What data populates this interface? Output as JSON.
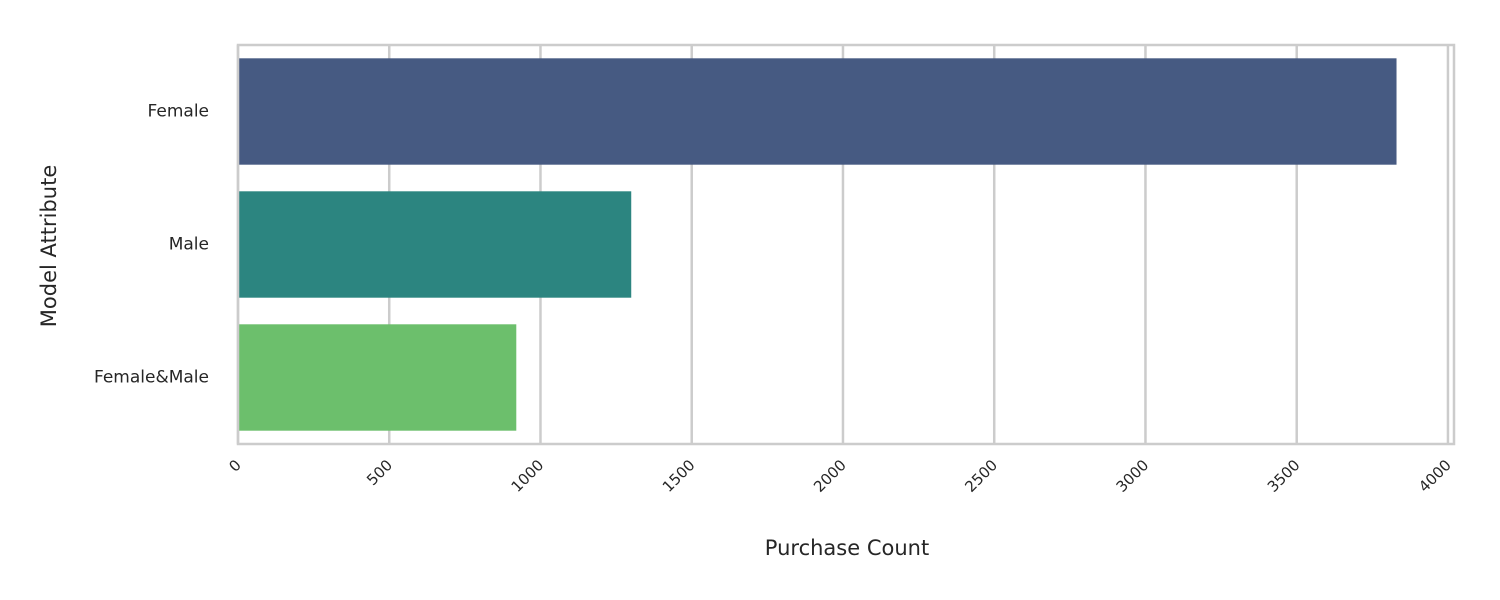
{
  "chart_data": {
    "type": "bar",
    "orientation": "horizontal",
    "categories": [
      "Female",
      "Male",
      "Female&Male"
    ],
    "values": [
      3830,
      1300,
      920
    ],
    "colors": [
      "#465a82",
      "#2c8580",
      "#6cbf6c"
    ],
    "title": "",
    "xlabel": "Purchase Count",
    "ylabel": "Model Attribute",
    "xlim": [
      0,
      4020
    ],
    "xticks": [
      "0",
      "500",
      "1000",
      "1500",
      "2000",
      "2500",
      "3000",
      "3500",
      "4000"
    ],
    "xtick_values": [
      0,
      500,
      1000,
      1500,
      2000,
      2500,
      3000,
      3500,
      4000
    ],
    "grid": true,
    "legend": false
  }
}
